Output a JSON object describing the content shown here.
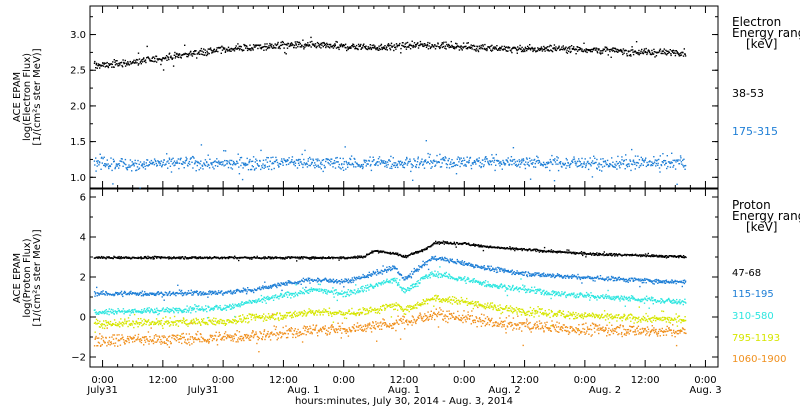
{
  "chart_data": [
    {
      "type": "scatter",
      "ylabel_lines": [
        "ACE EPAM",
        "log(Electron Flux)",
        "[1/(cm²s ster MeV)]"
      ],
      "ylim": [
        0.85,
        3.4
      ],
      "yticks": [
        1.0,
        1.5,
        2.0,
        2.5,
        3.0
      ],
      "ytick_labels": [
        "1.0",
        "1.5",
        "2.0",
        "2.5",
        "3.0"
      ],
      "legend_title": [
        "Electron",
        "Energy range",
        "[keV]"
      ],
      "series": [
        {
          "name": "38-53",
          "color": "#000000",
          "x": [
            0,
            6,
            12,
            18,
            24,
            30,
            36,
            42,
            48,
            54,
            60,
            66,
            72,
            78,
            84,
            90,
            96,
            102,
            108,
            114,
            116
          ],
          "y": [
            2.58,
            2.62,
            2.68,
            2.75,
            2.8,
            2.83,
            2.86,
            2.85,
            2.84,
            2.83,
            2.85,
            2.86,
            2.84,
            2.82,
            2.8,
            2.82,
            2.8,
            2.78,
            2.76,
            2.76,
            2.75
          ],
          "spread": 0.05
        },
        {
          "name": "175-315",
          "color": "#1f7fd6",
          "x": [
            0,
            6,
            12,
            18,
            24,
            30,
            36,
            42,
            48,
            54,
            60,
            66,
            72,
            78,
            84,
            90,
            96,
            102,
            108,
            114,
            116
          ],
          "y": [
            1.2,
            1.19,
            1.2,
            1.21,
            1.2,
            1.21,
            1.22,
            1.21,
            1.2,
            1.21,
            1.21,
            1.22,
            1.22,
            1.23,
            1.22,
            1.21,
            1.21,
            1.2,
            1.21,
            1.21,
            1.21
          ],
          "spread": 0.09
        }
      ]
    },
    {
      "type": "scatter",
      "ylabel_lines": [
        "ACE EPAM",
        "log(Proton Flux)",
        "[1/(cm²s ster MeV)]"
      ],
      "ylim": [
        -2.5,
        6.4
      ],
      "yticks": [
        -2,
        0,
        2,
        4,
        6
      ],
      "ytick_labels": [
        "−2",
        "0",
        "2",
        "4",
        "6"
      ],
      "legend_title": [
        "Proton",
        "Energy range",
        "[keV]"
      ],
      "series": [
        {
          "name": "47-68",
          "color": "#000000",
          "x": [
            0,
            12,
            24,
            36,
            42,
            48,
            52,
            54,
            58,
            60,
            64,
            66,
            72,
            78,
            84,
            90,
            96,
            102,
            108,
            114,
            116
          ],
          "y": [
            3.0,
            3.0,
            3.0,
            3.0,
            3.0,
            3.0,
            3.05,
            3.35,
            3.2,
            3.05,
            3.4,
            3.75,
            3.7,
            3.5,
            3.4,
            3.3,
            3.2,
            3.15,
            3.1,
            3.05,
            3.05
          ],
          "spread": 0.06
        },
        {
          "name": "115-195",
          "color": "#1f7fd6",
          "x": [
            0,
            12,
            24,
            30,
            36,
            42,
            48,
            54,
            58,
            60,
            64,
            66,
            72,
            78,
            84,
            90,
            96,
            102,
            108,
            114,
            116
          ],
          "y": [
            1.2,
            1.2,
            1.25,
            1.4,
            1.7,
            1.9,
            1.8,
            2.2,
            2.5,
            1.9,
            2.7,
            3.0,
            2.7,
            2.4,
            2.2,
            2.1,
            2.0,
            1.95,
            1.85,
            1.8,
            1.8
          ],
          "spread": 0.12
        },
        {
          "name": "310-580",
          "color": "#2ee6e0",
          "x": [
            0,
            12,
            24,
            30,
            36,
            42,
            48,
            54,
            58,
            60,
            64,
            66,
            72,
            78,
            84,
            90,
            96,
            102,
            108,
            114,
            116
          ],
          "y": [
            0.3,
            0.35,
            0.5,
            0.8,
            1.1,
            1.4,
            1.2,
            1.6,
            1.9,
            1.3,
            2.0,
            2.2,
            1.9,
            1.6,
            1.4,
            1.2,
            1.1,
            1.0,
            0.9,
            0.8,
            0.8
          ],
          "spread": 0.15
        },
        {
          "name": "795-1193",
          "color": "#d6e600",
          "x": [
            0,
            12,
            24,
            30,
            36,
            42,
            48,
            54,
            58,
            60,
            64,
            66,
            72,
            78,
            84,
            90,
            96,
            102,
            108,
            114,
            116
          ],
          "y": [
            -0.3,
            -0.25,
            -0.2,
            0.0,
            0.1,
            0.3,
            0.2,
            0.4,
            0.6,
            0.4,
            0.8,
            1.0,
            0.8,
            0.5,
            0.3,
            0.2,
            0.1,
            0.0,
            -0.05,
            -0.1,
            -0.1
          ],
          "spread": 0.2
        },
        {
          "name": "1060-1900",
          "color": "#f0901e",
          "x": [
            0,
            12,
            24,
            30,
            36,
            42,
            48,
            54,
            58,
            60,
            64,
            66,
            72,
            78,
            84,
            90,
            96,
            102,
            108,
            114,
            116
          ],
          "y": [
            -1.1,
            -1.1,
            -1.0,
            -0.9,
            -0.8,
            -0.6,
            -0.6,
            -0.4,
            -0.3,
            -0.2,
            0.0,
            0.2,
            0.0,
            -0.3,
            -0.4,
            -0.5,
            -0.6,
            -0.6,
            -0.65,
            -0.7,
            -0.7
          ],
          "spread": 0.3
        }
      ]
    }
  ],
  "x_axis": {
    "xlim": [
      -2.5,
      122.5
    ],
    "ticks": [
      0,
      12,
      24,
      36,
      48,
      60,
      72,
      84,
      96,
      108,
      120
    ],
    "tick_lines_top": [
      "0:00",
      "12:00",
      "0:00",
      "12:00",
      "0:00",
      "12:00",
      "0:00",
      "12:00",
      "0:00",
      "12:00",
      "0:00"
    ],
    "tick_lines_bottom": [
      "July31",
      "July31",
      "Aug. 1",
      "Aug. 1",
      "Aug. 2",
      "Aug. 2",
      "Aug. 3",
      "",
      "",
      "",
      ""
    ],
    "label_pos_top": [
      0,
      12,
      24,
      36,
      48,
      60,
      72,
      84,
      96,
      108,
      120
    ],
    "xlabel": "hours:minutes, July 30, 2014 - Aug. 3, 2014"
  },
  "colors": {
    "axis": "#000000",
    "background": "#ffffff"
  }
}
